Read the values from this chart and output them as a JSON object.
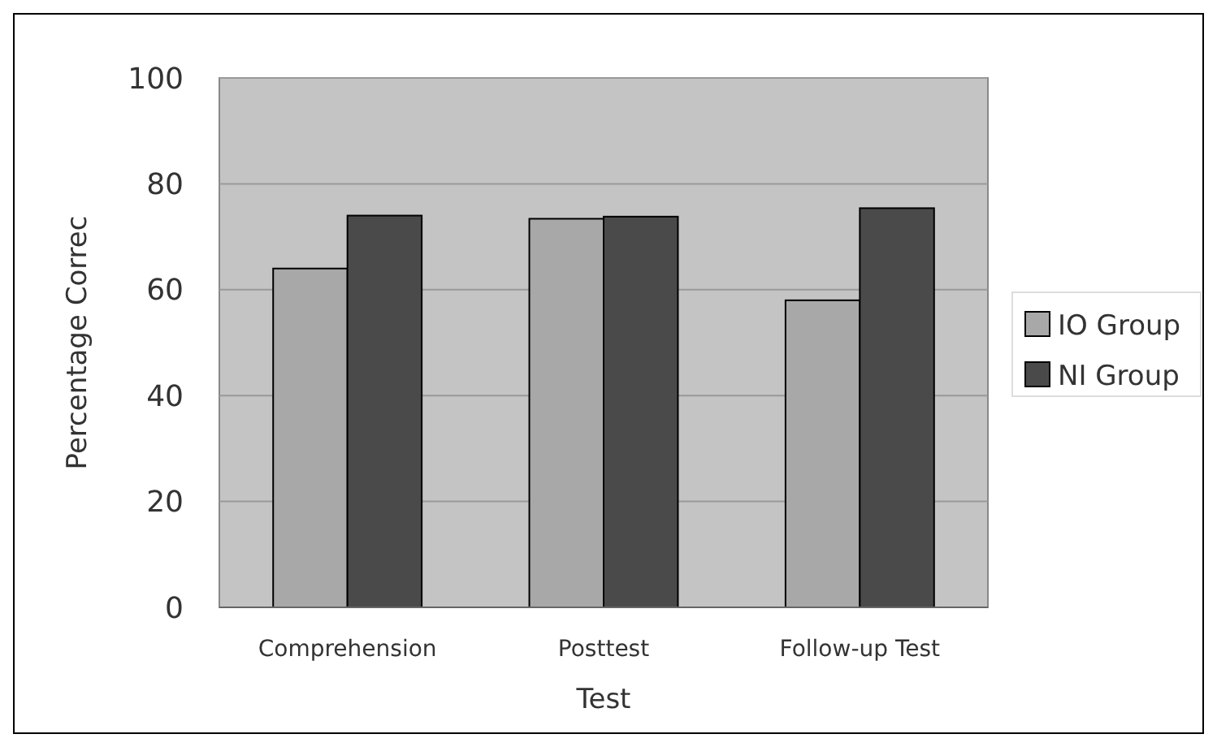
{
  "chart_data": {
    "type": "bar",
    "xlabel": "Test",
    "ylabel": "Percentage Correc",
    "categories": [
      "Comprehension",
      "Posttest",
      "Follow-up Test"
    ],
    "series": [
      {
        "name": "IO Group",
        "color": "#a8a8a8",
        "values": [
          64,
          73.4,
          58
        ]
      },
      {
        "name": "NI Group",
        "color": "#4a4a4a",
        "values": [
          74,
          73.8,
          75.4
        ]
      }
    ],
    "ylim": [
      0,
      100
    ],
    "yticks": [
      0,
      20,
      40,
      60,
      80,
      100
    ],
    "grid": "y",
    "legend": "right"
  }
}
